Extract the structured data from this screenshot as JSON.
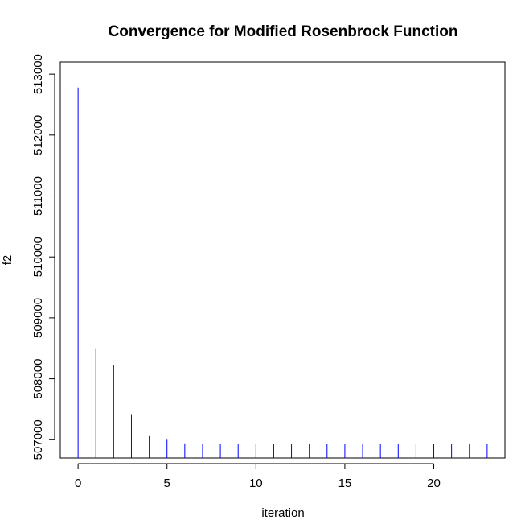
{
  "chart_data": {
    "type": "bar",
    "style": "spike",
    "title": "Convergence for Modified Rosenbrock Function",
    "xlabel": "iteration",
    "ylabel": "f2",
    "x": [
      0,
      1,
      2,
      3,
      4,
      5,
      6,
      7,
      8,
      9,
      10,
      11,
      12,
      13,
      14,
      15,
      16,
      17,
      18,
      19,
      20,
      21,
      22,
      23
    ],
    "values": [
      512780,
      508500,
      508220,
      507420,
      507060,
      507000,
      506940,
      506930,
      506930,
      506930,
      506930,
      506930,
      506930,
      506930,
      506930,
      506930,
      506930,
      506930,
      506930,
      506930,
      506930,
      506930,
      506930,
      506930
    ],
    "xlim": [
      -1,
      24
    ],
    "ylim": [
      506700,
      513200
    ],
    "xticks": [
      0,
      5,
      10,
      15,
      20
    ],
    "yticks": [
      507000,
      508000,
      509000,
      510000,
      511000,
      512000,
      513000
    ],
    "series_color": "#0000ff",
    "grid": false
  }
}
